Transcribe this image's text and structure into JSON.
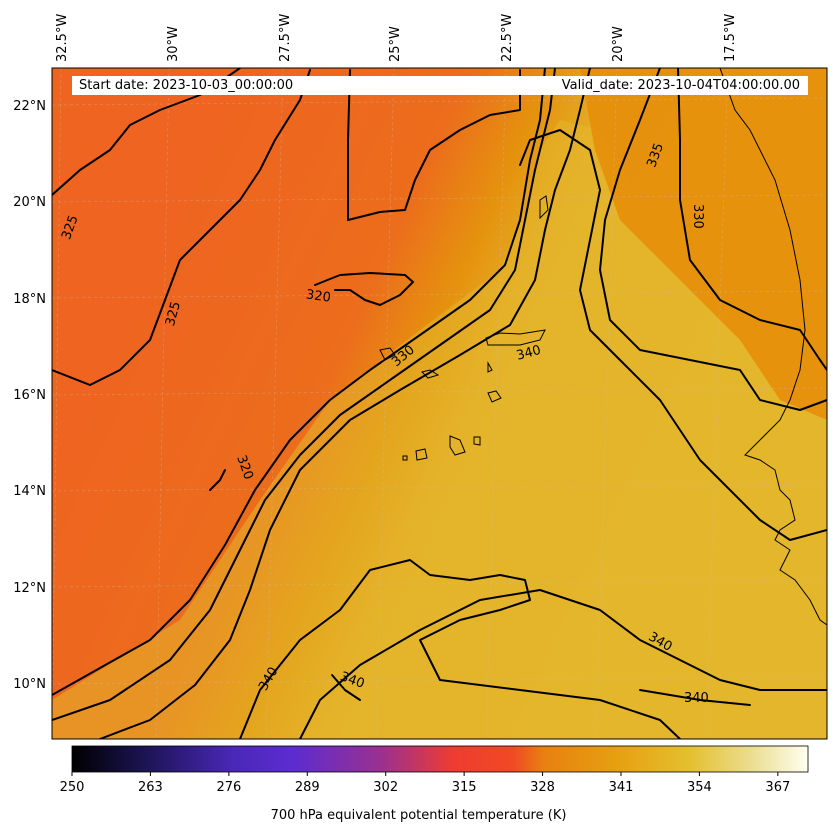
{
  "map": {
    "start_date_label": "Start date: 2023-10-03_00:00:00",
    "valid_date_label": "Valid_date: 2023-10-04T04:00:00.00",
    "lon_ticks": [
      "32.5°W",
      "30°W",
      "27.5°W",
      "25°W",
      "22.5°W",
      "20°W",
      "17.5°W"
    ],
    "lat_ticks": [
      "22°N",
      "20°N",
      "18°N",
      "16°N",
      "14°N",
      "12°N",
      "10°N"
    ],
    "contour_labels": [
      "325",
      "325",
      "320",
      "320",
      "330",
      "340",
      "335",
      "330",
      "340",
      "340",
      "340",
      "340"
    ],
    "colors": {
      "cool": "#ee6420",
      "mid": "#e58a0a",
      "warm": "#e4b52a"
    }
  },
  "colorbar": {
    "ticks": [
      "250",
      "263",
      "276",
      "289",
      "302",
      "315",
      "328",
      "341",
      "354",
      "367"
    ],
    "min": 250,
    "max": 372,
    "label": "700 hPa equivalent potential temperature (K)"
  }
}
